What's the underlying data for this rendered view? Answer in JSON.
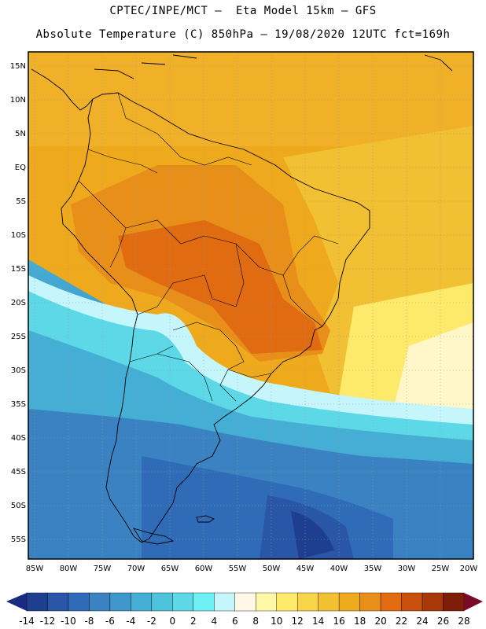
{
  "header": {
    "line1": "CPTEC/INPE/MCT –  Eta Model 15km – GFS",
    "line2": "Absolute Temperature (C) 850hPa – 19/08/2020 12UTC fct=169h"
  },
  "map": {
    "lat_labels": [
      "15N",
      "10N",
      "5N",
      "EQ",
      "5S",
      "10S",
      "15S",
      "20S",
      "25S",
      "30S",
      "35S",
      "40S",
      "45S",
      "50S",
      "55S"
    ],
    "lon_labels": [
      "85W",
      "80W",
      "75W",
      "70W",
      "65W",
      "60W",
      "55W",
      "50W",
      "45W",
      "40W",
      "35W",
      "30W",
      "25W",
      "20W"
    ]
  },
  "legend": {
    "labels": [
      "-14",
      "-12",
      "-10",
      "-8",
      "-6",
      "-4",
      "-2",
      "0",
      "2",
      "4",
      "6",
      "8",
      "10",
      "12",
      "14",
      "16",
      "18",
      "20",
      "22",
      "24",
      "26",
      "28"
    ],
    "colors": [
      "#1e3f8f",
      "#2a56a8",
      "#2f6bb6",
      "#3a82c2",
      "#3f97cc",
      "#45aed4",
      "#4ec4dc",
      "#5cd8e6",
      "#6cf0f4",
      "#c4f6fb",
      "#fff8e6",
      "#fff7a8",
      "#fdea6a",
      "#f8d548",
      "#f2c033",
      "#eeaa1c",
      "#e88f1a",
      "#e06b10",
      "#c8500c",
      "#a83808",
      "#7e1e08"
    ],
    "under_color": "#1a2a80",
    "over_color": "#7a0a2a"
  }
}
